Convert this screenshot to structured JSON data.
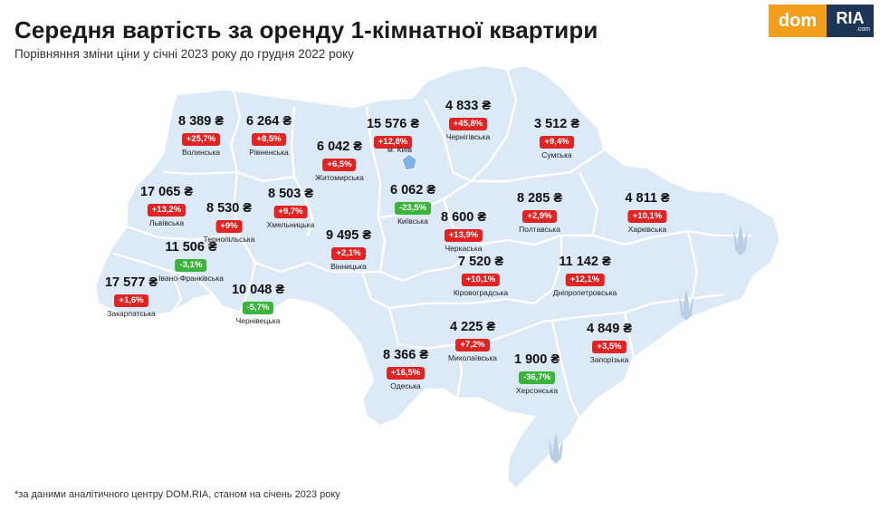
{
  "title": "Середня вартість за оренду 1-кімнатної квартири",
  "subtitle": "Порівняння зміни ціни у січні 2023 року до грудня 2022 року",
  "footnote": "*за даними аналітичного центру DOM.RIA, станом на січень 2023 року",
  "logo": {
    "left": "dom",
    "right": "RIA",
    "suffix": ".com"
  },
  "colors": {
    "map_fill": "#dce9f7",
    "border": "#ffffff",
    "increase": "#e02424",
    "decrease": "#3bb43b",
    "logo_orange": "#f59d1c",
    "logo_navy": "#1d3557"
  },
  "kyiv_city_label": "м. Київ",
  "regions": [
    {
      "name": "Волинська",
      "price": "8 389 ₴",
      "change": "+25,7%",
      "trend": "up"
    },
    {
      "name": "Рівненська",
      "price": "6 264 ₴",
      "change": "+8,5%",
      "trend": "up"
    },
    {
      "name": "Житомирська",
      "price": "6 042 ₴",
      "change": "+6,5%",
      "trend": "up"
    },
    {
      "name": "Київська",
      "price": "6 062 ₴",
      "change": "-23,5%",
      "trend": "down"
    },
    {
      "name": "м. Київ",
      "price": "15 576 ₴",
      "change": "+12,8%",
      "trend": "up"
    },
    {
      "name": "Чернігівська",
      "price": "4 833 ₴",
      "change": "+45,8%",
      "trend": "up"
    },
    {
      "name": "Сумська",
      "price": "3 512 ₴",
      "change": "+9,4%",
      "trend": "up"
    },
    {
      "name": "Львівська",
      "price": "17 065 ₴",
      "change": "+13,2%",
      "trend": "up"
    },
    {
      "name": "Тернопільська",
      "price": "8 530 ₴",
      "change": "+9%",
      "trend": "up"
    },
    {
      "name": "Хмельницька",
      "price": "8 503 ₴",
      "change": "+9,7%",
      "trend": "up"
    },
    {
      "name": "Вінницька",
      "price": "9 495 ₴",
      "change": "+2,1%",
      "trend": "up"
    },
    {
      "name": "Черкаська",
      "price": "8 600 ₴",
      "change": "+13,9%",
      "trend": "up"
    },
    {
      "name": "Полтавська",
      "price": "8 285 ₴",
      "change": "+2,9%",
      "trend": "up"
    },
    {
      "name": "Харківська",
      "price": "4 811 ₴",
      "change": "+10,1%",
      "trend": "up"
    },
    {
      "name": "Івано-Франківська",
      "price": "11 506 ₴",
      "change": "-3,1%",
      "trend": "down"
    },
    {
      "name": "Закарпатська",
      "price": "17 577 ₴",
      "change": "+1,6%",
      "trend": "up"
    },
    {
      "name": "Чернівецька",
      "price": "10 048 ₴",
      "change": "-5,7%",
      "trend": "down"
    },
    {
      "name": "Кіровоградська",
      "price": "7 520 ₴",
      "change": "+10,1%",
      "trend": "up"
    },
    {
      "name": "Дніпропетровська",
      "price": "11 142 ₴",
      "change": "+12,1%",
      "trend": "up"
    },
    {
      "name": "Миколаївська",
      "price": "4 225 ₴",
      "change": "+7,2%",
      "trend": "up"
    },
    {
      "name": "Одеська",
      "price": "8 366 ₴",
      "change": "+16,5%",
      "trend": "up"
    },
    {
      "name": "Херсонська",
      "price": "1 900 ₴",
      "change": "-36,7%",
      "trend": "down"
    },
    {
      "name": "Запорізька",
      "price": "4 849 ₴",
      "change": "+3,5%",
      "trend": "up"
    }
  ],
  "map_icons": [
    "trident-icon",
    "trident-icon",
    "trident-icon"
  ]
}
